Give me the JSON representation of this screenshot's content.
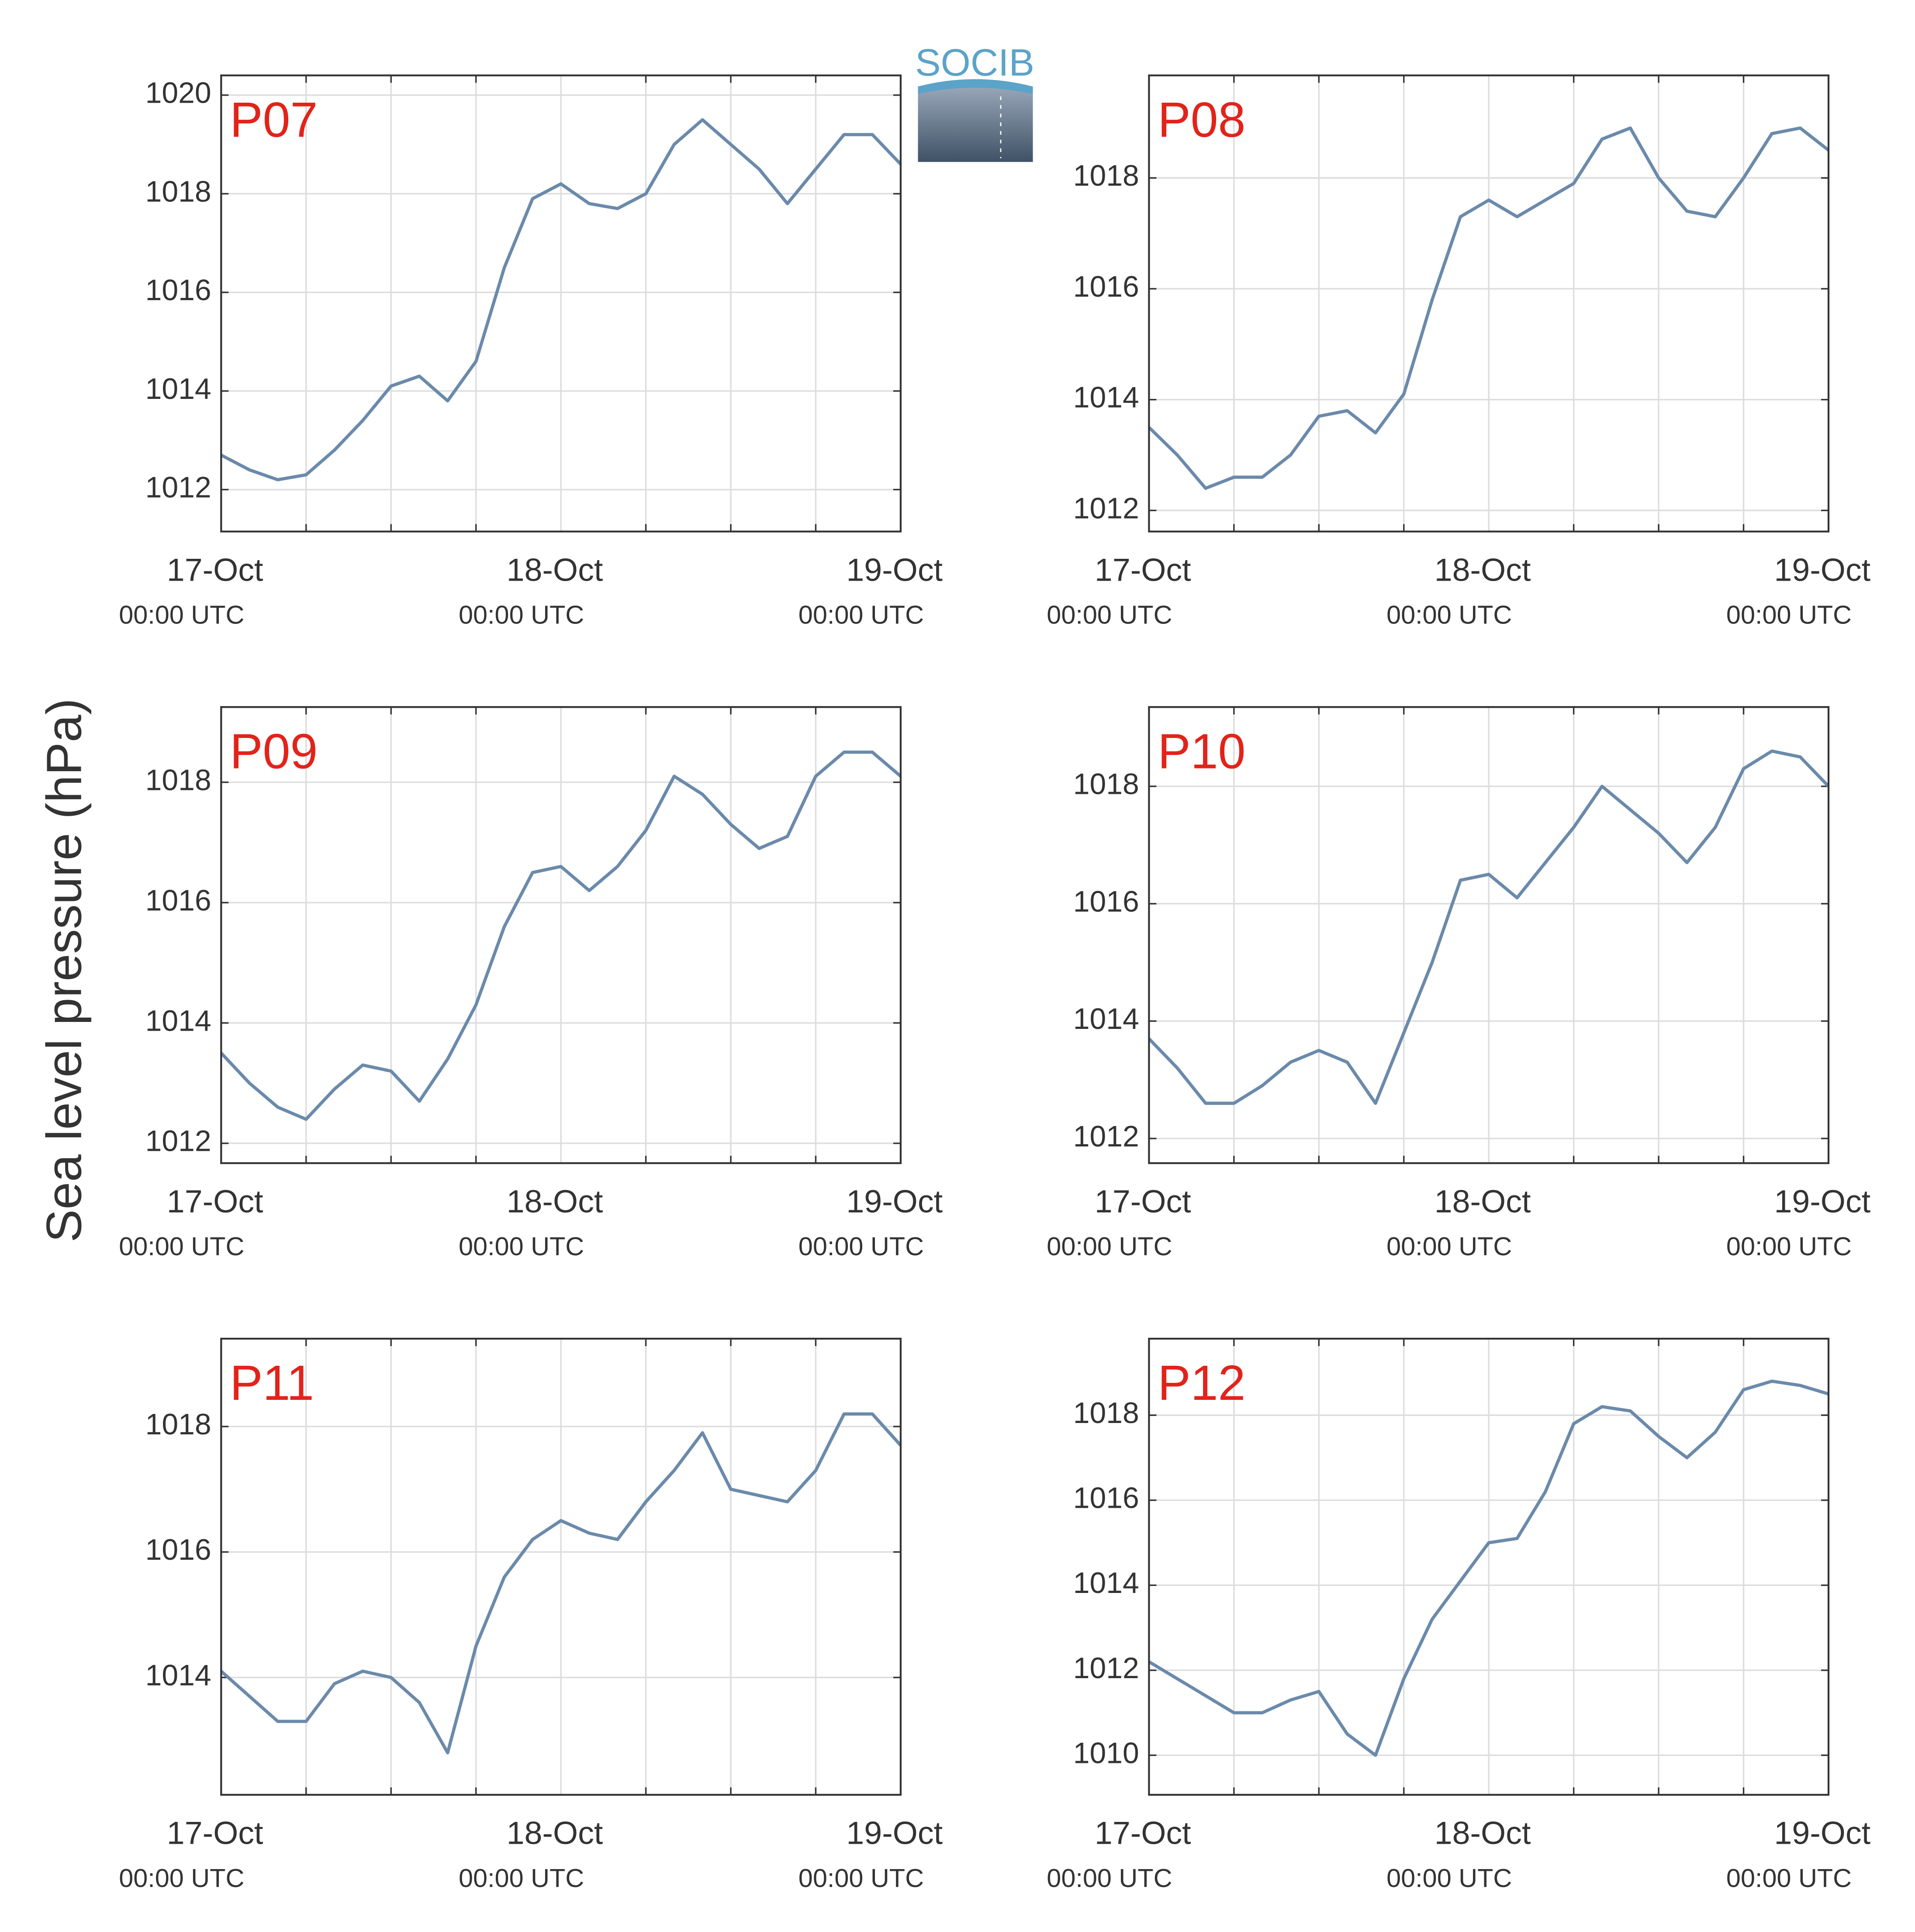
{
  "ylabel": "Sea level pressure (hPa)",
  "logo_text": "SOCIB",
  "chart_data": [
    {
      "type": "line",
      "title": "P07",
      "xlim": [
        0,
        48
      ],
      "xticks": [
        {
          "value": 0,
          "label": "17-Oct",
          "sublabel": "00:00 UTC"
        },
        {
          "value": 24,
          "label": "18-Oct",
          "sublabel": "00:00 UTC"
        },
        {
          "value": 48,
          "label": "19-Oct",
          "sublabel": "00:00 UTC"
        }
      ],
      "xminor": [
        6,
        12,
        18,
        30,
        36,
        42
      ],
      "grid": true,
      "ylim": [
        1011.15,
        1020.4
      ],
      "yticks": [
        1012,
        1014,
        1016,
        1018,
        1020
      ],
      "x": [
        0,
        2,
        4,
        6,
        8,
        10,
        12,
        14,
        16,
        18,
        20,
        22,
        24,
        26,
        28,
        30,
        32,
        34,
        36,
        38,
        40,
        42,
        44,
        46,
        48
      ],
      "series": [
        {
          "color": "#6b8aab",
          "values": [
            1012.7,
            1012.4,
            1012.2,
            1012.3,
            1012.8,
            1013.4,
            1014.1,
            1014.3,
            1013.8,
            1014.6,
            1016.5,
            1017.9,
            1018.2,
            1017.8,
            1017.7,
            1018.0,
            1019.0,
            1019.5,
            1019.0,
            1018.5,
            1017.8,
            1018.5,
            1019.2,
            1019.2,
            1018.6
          ]
        }
      ]
    },
    {
      "type": "line",
      "title": "P08",
      "xlim": [
        0,
        48
      ],
      "xticks": [
        {
          "value": 0,
          "label": "17-Oct",
          "sublabel": "00:00 UTC"
        },
        {
          "value": 24,
          "label": "18-Oct",
          "sublabel": "00:00 UTC"
        },
        {
          "value": 48,
          "label": "19-Oct",
          "sublabel": "00:00 UTC"
        }
      ],
      "xminor": [
        6,
        12,
        18,
        30,
        36,
        42
      ],
      "grid": true,
      "ylim": [
        1011.62,
        1019.85
      ],
      "yticks": [
        1012,
        1014,
        1016,
        1018
      ],
      "x": [
        0,
        2,
        4,
        6,
        8,
        10,
        12,
        14,
        16,
        18,
        20,
        22,
        24,
        26,
        28,
        30,
        32,
        34,
        36,
        38,
        40,
        42,
        44,
        46,
        48
      ],
      "series": [
        {
          "color": "#6b8aab",
          "values": [
            1013.5,
            1013.0,
            1012.4,
            1012.6,
            1012.6,
            1013.0,
            1013.7,
            1013.8,
            1013.4,
            1014.1,
            1015.8,
            1017.3,
            1017.6,
            1017.3,
            1017.6,
            1017.9,
            1018.7,
            1018.9,
            1018.0,
            1017.4,
            1017.3,
            1018.0,
            1018.8,
            1018.9,
            1018.5
          ]
        }
      ]
    },
    {
      "type": "line",
      "title": "P09",
      "xlim": [
        0,
        48
      ],
      "xticks": [
        {
          "value": 0,
          "label": "17-Oct",
          "sublabel": "00:00 UTC"
        },
        {
          "value": 24,
          "label": "18-Oct",
          "sublabel": "00:00 UTC"
        },
        {
          "value": 48,
          "label": "19-Oct",
          "sublabel": "00:00 UTC"
        }
      ],
      "xminor": [
        6,
        12,
        18,
        30,
        36,
        42
      ],
      "grid": true,
      "ylim": [
        1011.67,
        1019.25
      ],
      "yticks": [
        1012,
        1014,
        1016,
        1018
      ],
      "x": [
        0,
        2,
        4,
        6,
        8,
        10,
        12,
        14,
        16,
        18,
        20,
        22,
        24,
        26,
        28,
        30,
        32,
        34,
        36,
        38,
        40,
        42,
        44,
        46,
        48
      ],
      "series": [
        {
          "color": "#6b8aab",
          "values": [
            1013.5,
            1013.0,
            1012.6,
            1012.4,
            1012.9,
            1013.3,
            1013.2,
            1012.7,
            1013.4,
            1014.3,
            1015.6,
            1016.5,
            1016.6,
            1016.2,
            1016.6,
            1017.2,
            1018.1,
            1017.8,
            1017.3,
            1016.9,
            1017.1,
            1018.1,
            1018.5,
            1018.5,
            1018.1
          ]
        }
      ]
    },
    {
      "type": "line",
      "title": "P10",
      "xlim": [
        0,
        48
      ],
      "xticks": [
        {
          "value": 0,
          "label": "17-Oct",
          "sublabel": "00:00 UTC"
        },
        {
          "value": 24,
          "label": "18-Oct",
          "sublabel": "00:00 UTC"
        },
        {
          "value": 48,
          "label": "19-Oct",
          "sublabel": "00:00 UTC"
        }
      ],
      "xminor": [
        6,
        12,
        18,
        30,
        36,
        42
      ],
      "grid": true,
      "ylim": [
        1011.58,
        1019.35
      ],
      "yticks": [
        1012,
        1014,
        1016,
        1018
      ],
      "x": [
        0,
        2,
        4,
        6,
        8,
        10,
        12,
        14,
        16,
        18,
        20,
        22,
        24,
        26,
        28,
        30,
        32,
        34,
        36,
        38,
        40,
        42,
        44,
        46,
        48
      ],
      "series": [
        {
          "color": "#6b8aab",
          "values": [
            1013.7,
            1013.2,
            1012.6,
            1012.6,
            1012.9,
            1013.3,
            1013.5,
            1013.3,
            1012.6,
            1013.8,
            1015.0,
            1016.4,
            1016.5,
            1016.1,
            1016.7,
            1017.3,
            1018.0,
            1017.6,
            1017.2,
            1016.7,
            1017.3,
            1018.3,
            1018.6,
            1018.5,
            1018.0
          ]
        }
      ]
    },
    {
      "type": "line",
      "title": "P11",
      "xlim": [
        0,
        48
      ],
      "xticks": [
        {
          "value": 0,
          "label": "17-Oct",
          "sublabel": "00:00 UTC"
        },
        {
          "value": 24,
          "label": "18-Oct",
          "sublabel": "00:00 UTC"
        },
        {
          "value": 48,
          "label": "19-Oct",
          "sublabel": "00:00 UTC"
        }
      ],
      "xminor": [
        6,
        12,
        18,
        30,
        36,
        42
      ],
      "grid": true,
      "ylim": [
        1012.13,
        1019.4
      ],
      "yticks": [
        1014,
        1016,
        1018
      ],
      "x": [
        0,
        2,
        4,
        6,
        8,
        10,
        12,
        14,
        16,
        18,
        20,
        22,
        24,
        26,
        28,
        30,
        32,
        34,
        36,
        38,
        40,
        42,
        44,
        46,
        48
      ],
      "series": [
        {
          "color": "#6b8aab",
          "values": [
            1014.1,
            1013.7,
            1013.3,
            1013.3,
            1013.9,
            1014.1,
            1014.0,
            1013.6,
            1012.8,
            1014.5,
            1015.6,
            1016.2,
            1016.5,
            1016.3,
            1016.2,
            1016.8,
            1017.3,
            1017.9,
            1017.0,
            1016.9,
            1016.8,
            1017.3,
            1018.2,
            1018.2,
            1017.7
          ]
        }
      ]
    },
    {
      "type": "line",
      "title": "P12",
      "xlim": [
        0,
        48
      ],
      "xticks": [
        {
          "value": 0,
          "label": "17-Oct",
          "sublabel": "00:00 UTC"
        },
        {
          "value": 24,
          "label": "18-Oct",
          "sublabel": "00:00 UTC"
        },
        {
          "value": 48,
          "label": "19-Oct",
          "sublabel": "00:00 UTC"
        }
      ],
      "xminor": [
        6,
        12,
        18,
        30,
        36,
        42
      ],
      "grid": true,
      "ylim": [
        1009.07,
        1019.8
      ],
      "yticks": [
        1010,
        1012,
        1014,
        1016,
        1018
      ],
      "x": [
        0,
        2,
        4,
        6,
        8,
        10,
        12,
        14,
        16,
        18,
        20,
        22,
        24,
        26,
        28,
        30,
        32,
        34,
        36,
        38,
        40,
        42,
        44,
        46,
        48
      ],
      "series": [
        {
          "color": "#6b8aab",
          "values": [
            1012.2,
            1011.8,
            1011.4,
            1011.0,
            1011.0,
            1011.3,
            1011.5,
            1010.5,
            1010.0,
            1011.8,
            1013.2,
            1014.1,
            1015.0,
            1015.1,
            1016.2,
            1017.8,
            1018.2,
            1018.1,
            1017.5,
            1017.0,
            1017.6,
            1018.6,
            1018.8,
            1018.7,
            1018.5
          ]
        }
      ]
    }
  ]
}
